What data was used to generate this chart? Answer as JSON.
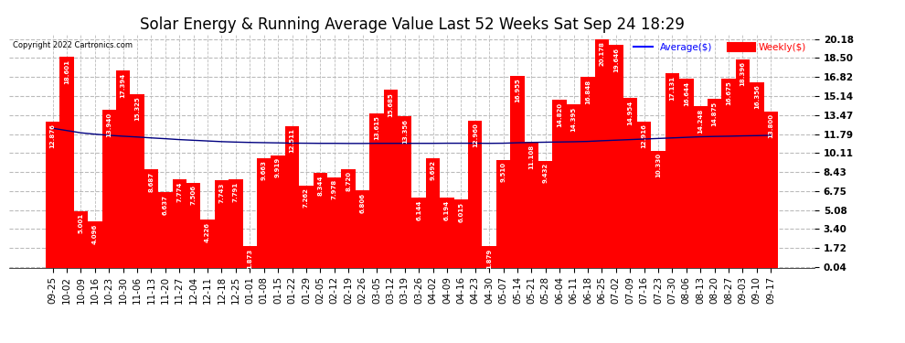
{
  "title": "Solar Energy & Running Average Value Last 52 Weeks Sat Sep 24 18:29",
  "copyright": "Copyright 2022 Cartronics.com",
  "legend_avg": "Average($)",
  "legend_weekly": "Weekly($)",
  "bar_color": "#ff0000",
  "avg_line_color": "#0000ff",
  "avg_line_color2": "#000080",
  "background_color": "#ffffff",
  "plot_bg_color": "#ffffff",
  "grid_color": "#bbbbbb",
  "categories": [
    "09-25",
    "10-02",
    "10-09",
    "10-16",
    "10-23",
    "10-30",
    "11-06",
    "11-13",
    "11-20",
    "11-27",
    "12-04",
    "12-11",
    "12-18",
    "12-25",
    "01-01",
    "01-08",
    "01-15",
    "01-22",
    "01-29",
    "02-05",
    "02-12",
    "02-19",
    "02-26",
    "03-05",
    "03-12",
    "03-19",
    "03-26",
    "04-02",
    "04-09",
    "04-16",
    "04-23",
    "04-30",
    "05-07",
    "05-14",
    "05-21",
    "05-28",
    "06-04",
    "06-11",
    "06-18",
    "06-25",
    "07-02",
    "07-09",
    "07-16",
    "07-23",
    "07-30",
    "08-06",
    "08-13",
    "08-20",
    "08-27",
    "09-03",
    "09-10",
    "09-17"
  ],
  "weekly_values": [
    12.876,
    18.601,
    5.001,
    4.096,
    13.94,
    17.394,
    15.325,
    8.687,
    6.637,
    7.774,
    7.506,
    4.226,
    7.743,
    7.791,
    1.873,
    9.663,
    9.919,
    12.511,
    7.262,
    8.344,
    7.978,
    8.72,
    6.806,
    13.615,
    15.685,
    13.356,
    6.144,
    9.692,
    6.194,
    6.015,
    12.96,
    1.879,
    9.51,
    16.955,
    11.108,
    9.432,
    14.82,
    14.395,
    16.848,
    20.178,
    19.646,
    14.954,
    12.916,
    10.33,
    17.131,
    16.644,
    14.248,
    14.875,
    16.675,
    18.396,
    16.356,
    13.8
  ],
  "avg_values": [
    12.3,
    12.1,
    11.9,
    11.78,
    11.68,
    11.6,
    11.53,
    11.45,
    11.38,
    11.3,
    11.24,
    11.18,
    11.12,
    11.08,
    11.05,
    11.03,
    11.01,
    10.99,
    10.98,
    10.97,
    10.97,
    10.96,
    10.96,
    10.97,
    10.97,
    10.97,
    10.97,
    10.97,
    10.98,
    10.98,
    10.98,
    10.97,
    10.98,
    11.02,
    11.05,
    11.07,
    11.09,
    11.11,
    11.14,
    11.2,
    11.25,
    11.3,
    11.35,
    11.4,
    11.45,
    11.5,
    11.55,
    11.58,
    11.6,
    11.63,
    11.65,
    11.68
  ],
  "yticks": [
    0.04,
    1.72,
    3.4,
    5.08,
    6.75,
    8.43,
    10.11,
    11.79,
    13.47,
    15.14,
    16.82,
    18.5,
    20.18
  ],
  "ylim": [
    0.0,
    20.6
  ],
  "title_fontsize": 12,
  "tick_fontsize": 7.5,
  "label_fontsize": 7
}
